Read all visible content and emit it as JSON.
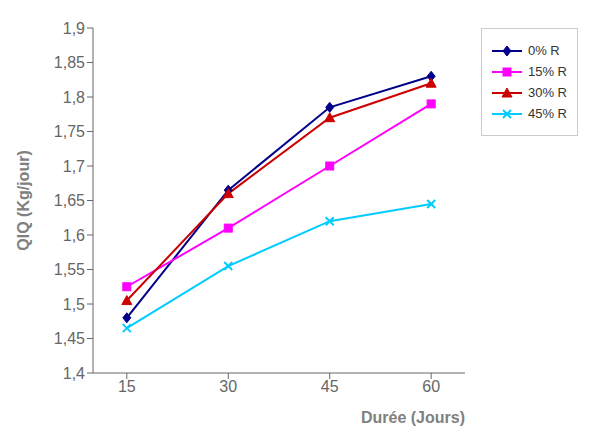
{
  "chart_data": {
    "type": "line",
    "x": [
      15,
      30,
      45,
      60
    ],
    "series": [
      {
        "name": "0% R",
        "color": "#00008B",
        "marker": "diamond",
        "values": [
          1.48,
          1.665,
          1.785,
          1.83
        ]
      },
      {
        "name": "15% R",
        "color": "#FF00FF",
        "marker": "square",
        "values": [
          1.525,
          1.61,
          1.7,
          1.79
        ]
      },
      {
        "name": "30% R",
        "color": "#CC0000",
        "marker": "triangle",
        "values": [
          1.505,
          1.66,
          1.77,
          1.82
        ]
      },
      {
        "name": "45% R",
        "color": "#00CCFF",
        "marker": "x",
        "values": [
          1.465,
          1.555,
          1.62,
          1.645
        ]
      }
    ],
    "xlabel": "Durée (Jours)",
    "ylabel": "QIQ (Kg/jour)",
    "xlim": [
      10,
      65
    ],
    "xticks": [
      15,
      30,
      45,
      60
    ],
    "ylim": [
      1.4,
      1.9
    ],
    "yticks": [
      {
        "value": 1.4,
        "label": "1,4"
      },
      {
        "value": 1.45,
        "label": "1,45"
      },
      {
        "value": 1.5,
        "label": "1,5"
      },
      {
        "value": 1.55,
        "label": "1,55"
      },
      {
        "value": 1.6,
        "label": "1,6"
      },
      {
        "value": 1.65,
        "label": "1,65"
      },
      {
        "value": 1.7,
        "label": "1,7"
      },
      {
        "value": 1.75,
        "label": "1,75"
      },
      {
        "value": 1.8,
        "label": "1,8"
      },
      {
        "value": 1.85,
        "label": "1,85"
      },
      {
        "value": 1.9,
        "label": "1,9"
      }
    ],
    "grid": false,
    "legend": "right"
  }
}
